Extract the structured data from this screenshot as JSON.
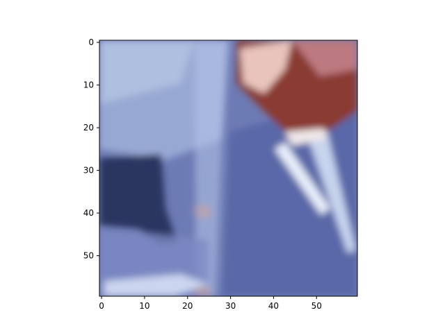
{
  "chart_data": {
    "type": "heatmap",
    "title": "",
    "xlabel": "",
    "ylabel": "",
    "image_size": [
      60,
      60
    ],
    "xlim": [
      -0.5,
      59.5
    ],
    "ylim": [
      59.5,
      -0.5
    ],
    "x_ticks": [
      0,
      10,
      20,
      30,
      40,
      50
    ],
    "x_tick_labels": [
      "0",
      "10",
      "20",
      "30",
      "40",
      "50"
    ],
    "y_ticks": [
      0,
      10,
      20,
      30,
      40,
      50
    ],
    "y_tick_labels": [
      "0",
      "10",
      "20",
      "30",
      "40",
      "50"
    ],
    "grid": false,
    "colors": {
      "dominant_blue": "#6d7bb5",
      "dark_navy": "#2a3560",
      "light_blue": "#c8d4ee",
      "rust": "#8a3a32",
      "pink": "#d9a9a4",
      "pale": "#f0e8e8"
    }
  }
}
